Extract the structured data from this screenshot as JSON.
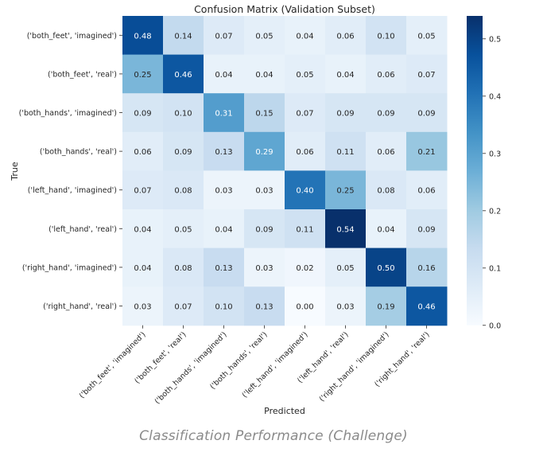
{
  "chart_data": {
    "type": "heatmap",
    "title": "Confusion Matrix (Validation Subset)",
    "xlabel": "Predicted",
    "ylabel": "True",
    "rows": [
      "('both_feet', 'imagined')",
      "('both_feet', 'real')",
      "('both_hands', 'imagined')",
      "('both_hands', 'real')",
      "('left_hand', 'imagined')",
      "('left_hand', 'real')",
      "('right_hand', 'imagined')",
      "('right_hand', 'real')"
    ],
    "columns": [
      "('both_feet', 'imagined')",
      "('both_feet', 'real')",
      "('both_hands', 'imagined')",
      "('both_hands', 'real')",
      "('left_hand', 'imagined')",
      "('left_hand', 'real')",
      "('right_hand', 'imagined')",
      "('right_hand', 'real')"
    ],
    "values": [
      [
        0.48,
        0.14,
        0.07,
        0.05,
        0.04,
        0.06,
        0.1,
        0.05
      ],
      [
        0.25,
        0.46,
        0.04,
        0.04,
        0.05,
        0.04,
        0.06,
        0.07
      ],
      [
        0.09,
        0.1,
        0.31,
        0.15,
        0.07,
        0.09,
        0.09,
        0.09
      ],
      [
        0.06,
        0.09,
        0.13,
        0.29,
        0.06,
        0.11,
        0.06,
        0.21
      ],
      [
        0.07,
        0.08,
        0.03,
        0.03,
        0.4,
        0.25,
        0.08,
        0.06
      ],
      [
        0.04,
        0.05,
        0.04,
        0.09,
        0.11,
        0.54,
        0.04,
        0.09
      ],
      [
        0.04,
        0.08,
        0.13,
        0.03,
        0.02,
        0.05,
        0.5,
        0.16
      ],
      [
        0.03,
        0.07,
        0.1,
        0.13,
        0.0,
        0.03,
        0.19,
        0.46
      ]
    ],
    "colorbar": {
      "range": [
        0,
        0.54
      ],
      "ticks": [
        0.0,
        0.1,
        0.2,
        0.3,
        0.4,
        0.5
      ],
      "tick_labels": [
        "0.0",
        "0.1",
        "0.2",
        "0.3",
        "0.4",
        "0.5"
      ]
    },
    "colormap": "Blues",
    "colors": {
      "low": "#f7fbff",
      "high": "#08306b",
      "text_dark": "#262626",
      "text_light": "#ffffff"
    }
  },
  "caption": "Classification Performance (Challenge)"
}
